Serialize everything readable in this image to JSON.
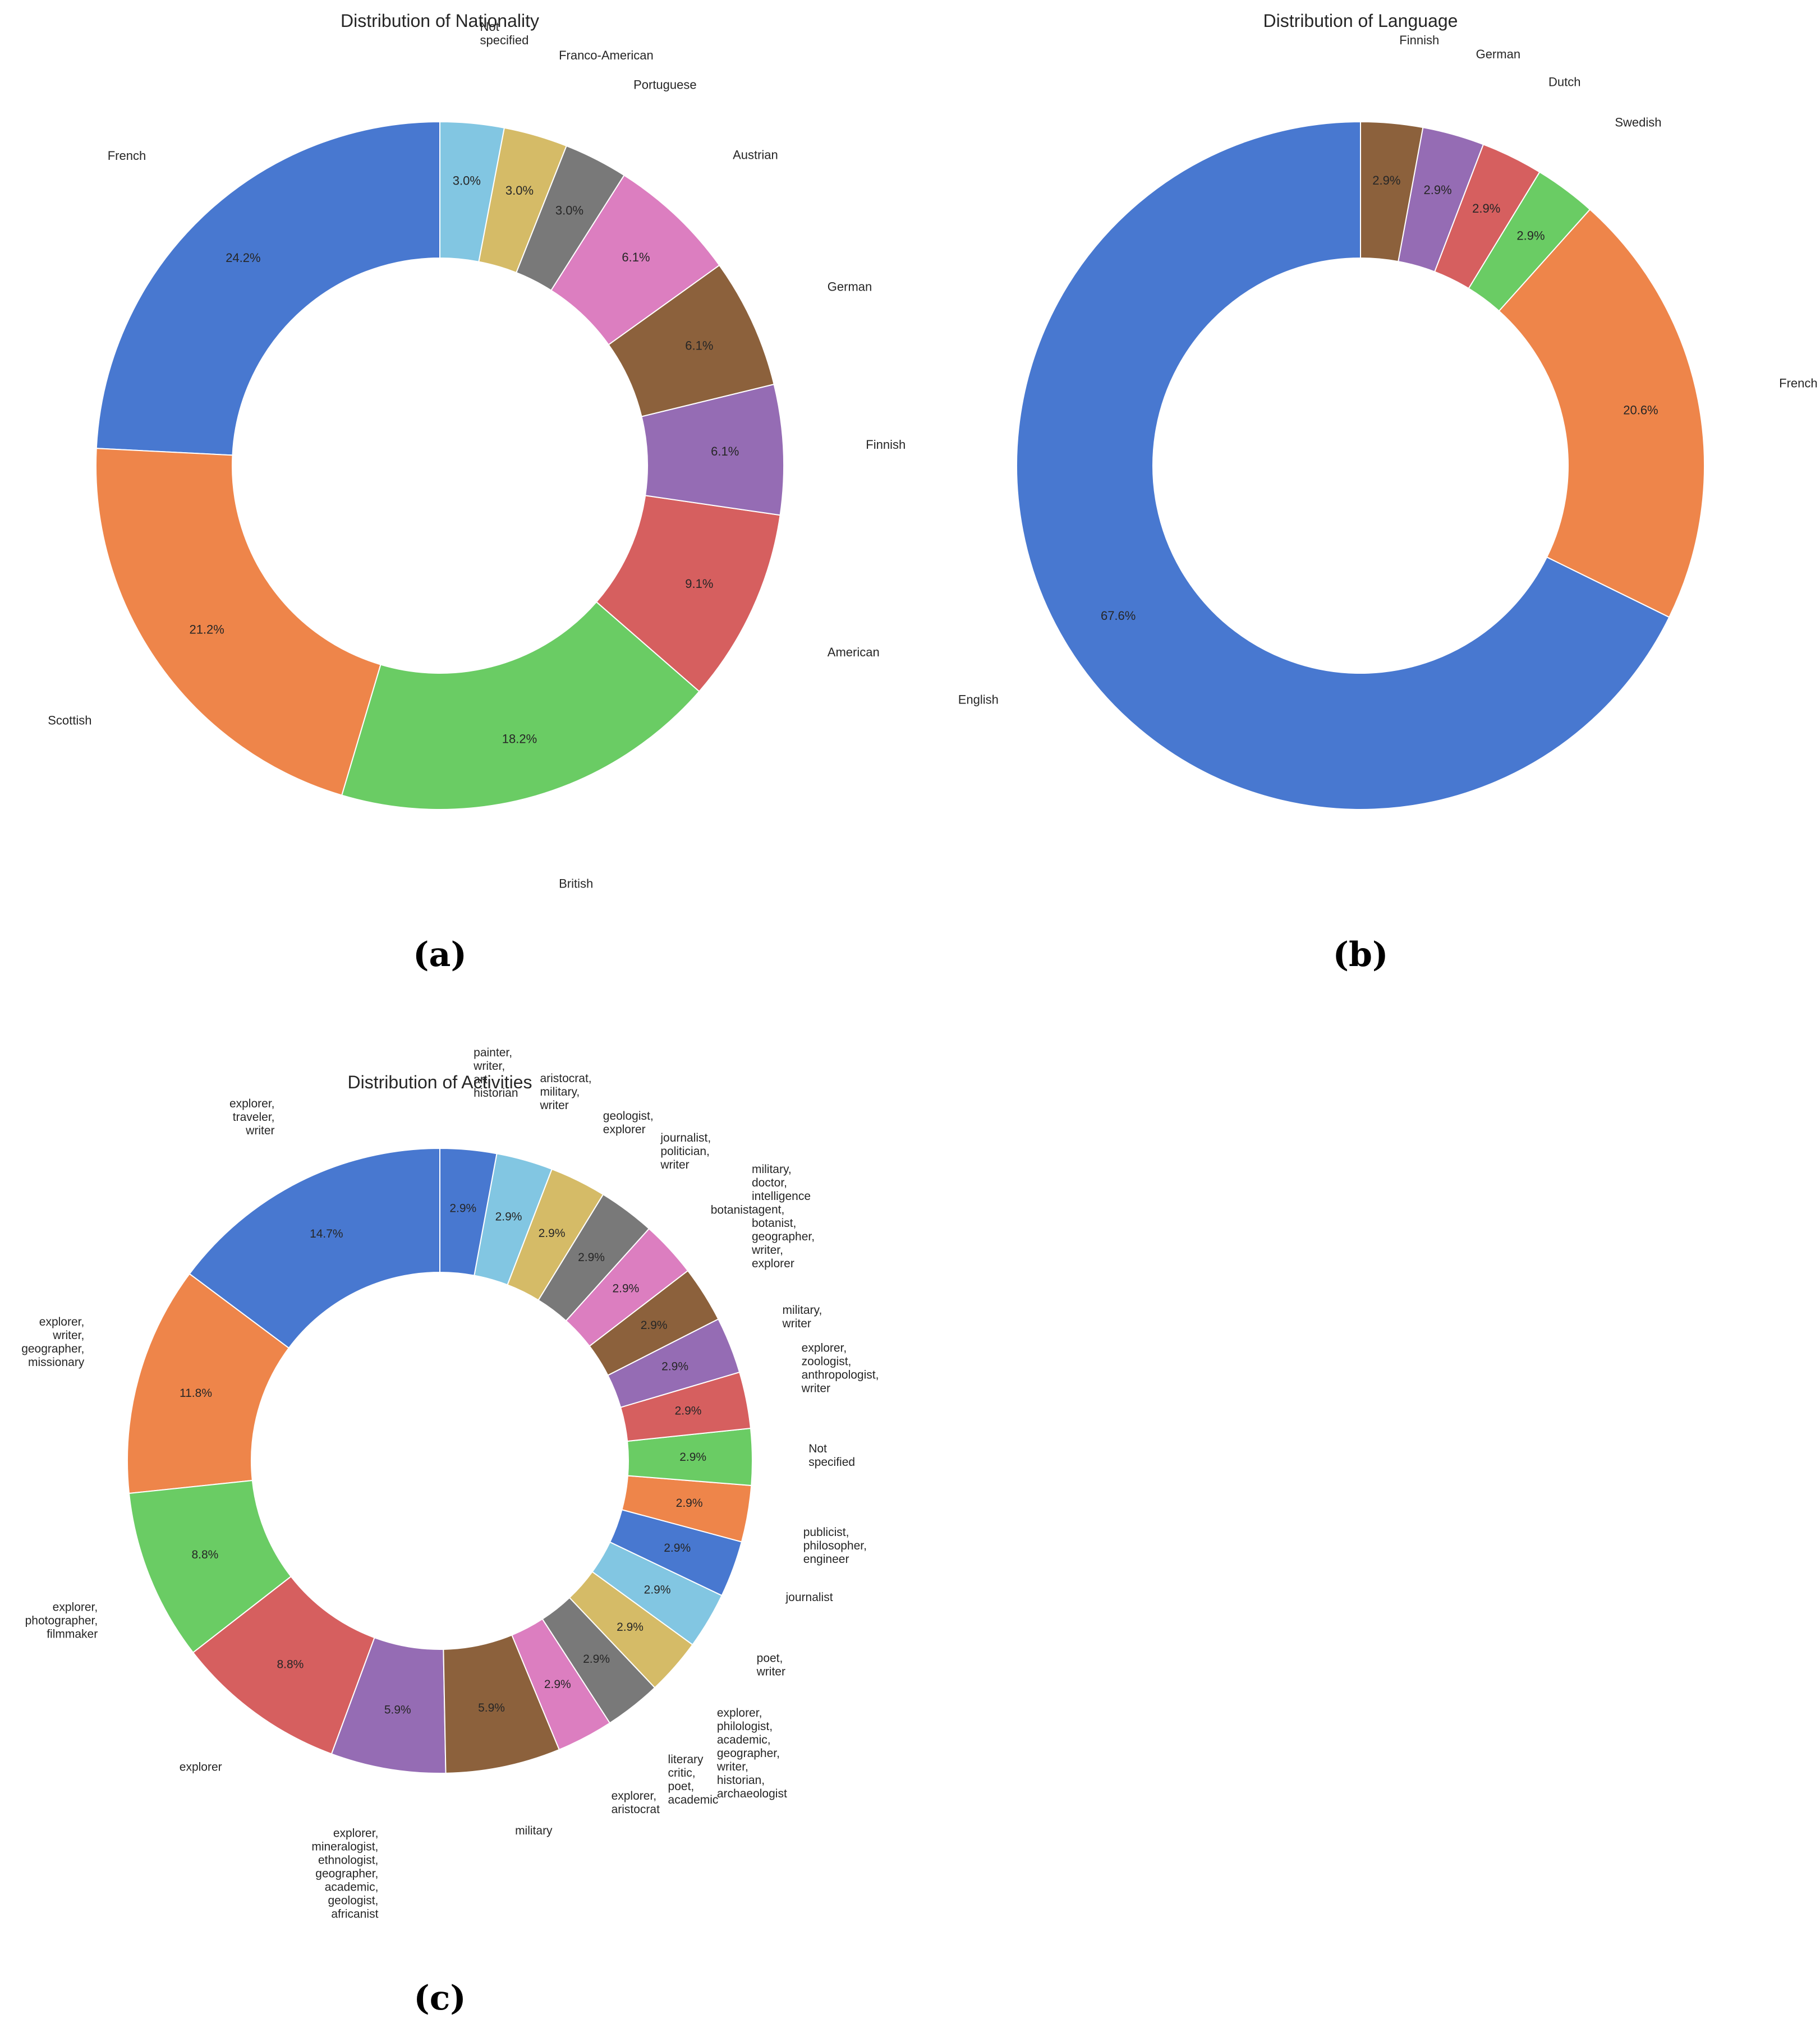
{
  "chart_data": [
    {
      "type": "pie",
      "variant": "donut",
      "panel": "(a)",
      "title": "Distribution of Nationality",
      "start_angle_deg": 90,
      "direction": "counterclockwise",
      "categories": [
        "French",
        "Scottish",
        "British",
        "American",
        "Finnish",
        "German",
        "Austrian",
        "Portuguese",
        "Franco-American",
        "Not\nspecified"
      ],
      "values": [
        24.2,
        21.2,
        18.2,
        9.1,
        6.1,
        6.1,
        6.1,
        3.0,
        3.0,
        3.0
      ],
      "value_labels": [
        "24.2%",
        "21.2%",
        "18.2%",
        "9.1%",
        "6.1%",
        "6.1%",
        "6.1%",
        "3.0%",
        "3.0%",
        "3.0%"
      ],
      "colors": [
        "#4878d0",
        "#ee854a",
        "#6acc64",
        "#d65f5f",
        "#956cb4",
        "#8c613c",
        "#dc7ec0",
        "#797979",
        "#d5bb67",
        "#82c6e2"
      ]
    },
    {
      "type": "pie",
      "variant": "donut",
      "panel": "(b)",
      "title": "Distribution of Language",
      "start_angle_deg": 90,
      "direction": "counterclockwise",
      "categories": [
        "English",
        "French",
        "Swedish",
        "Dutch",
        "German",
        "Finnish"
      ],
      "values": [
        67.6,
        20.6,
        2.9,
        2.9,
        2.9,
        2.9
      ],
      "value_labels": [
        "67.6%",
        "20.6%",
        "2.9%",
        "2.9%",
        "2.9%",
        "2.9%"
      ],
      "colors": [
        "#4878d0",
        "#ee854a",
        "#6acc64",
        "#d65f5f",
        "#956cb4",
        "#8c613c"
      ]
    },
    {
      "type": "pie",
      "variant": "donut",
      "panel": "(c)",
      "title": "Distribution of Activities",
      "start_angle_deg": 90,
      "direction": "counterclockwise",
      "categories": [
        "explorer,\ntraveler,\nwriter",
        "explorer,\nwriter,\ngeographer,\nmissionary",
        "explorer,\nphotographer,\nfilmmaker",
        "explorer",
        "explorer,\nmineralogist,\nethnologist,\ngeographer,\nacademic,\ngeologist,\nafricanist",
        "military",
        "explorer,\naristocrat",
        "literary\ncritic,\npoet,\nacademic",
        "explorer,\nphilologist,\nacademic,\ngeographer,\nwriter,\nhistorian,\narchaeologist",
        "poet,\nwriter",
        "journalist",
        "publicist,\nphilosopher,\nengineer",
        "Not\nspecified",
        "explorer,\nzoologist,\nanthropologist,\nwriter",
        "military,\nwriter",
        "military,\ndoctor,\nintelligence\nagent,\nbotanist,\ngeographer,\nwriter,\nexplorer",
        "botanist",
        "journalist,\npolitician,\nwriter",
        "geologist,\nexplorer",
        "aristocrat,\nmilitary,\nwriter",
        "painter,\nwriter,\nart\nhistorian"
      ],
      "values": [
        14.7,
        11.8,
        8.8,
        8.8,
        5.9,
        5.9,
        2.9,
        2.9,
        2.9,
        2.9,
        2.9,
        2.9,
        2.9,
        2.9,
        2.9,
        2.9,
        2.9,
        2.9,
        2.9,
        2.9,
        2.9
      ],
      "value_labels": [
        "14.7%",
        "11.8%",
        "8.8%",
        "8.8%",
        "5.9%",
        "5.9%",
        "2.9%",
        "2.9%",
        "2.9%",
        "2.9%",
        "2.9%",
        "2.9%",
        "2.9%",
        "2.9%",
        "2.9%",
        "2.9%",
        "2.9%",
        "2.9%",
        "2.9%",
        "2.9%",
        "2.9%"
      ],
      "colors": [
        "#4878d0",
        "#ee854a",
        "#6acc64",
        "#d65f5f",
        "#956cb4",
        "#8c613c",
        "#dc7ec0",
        "#797979",
        "#d5bb67",
        "#82c6e2",
        "#4878d0",
        "#ee854a",
        "#6acc64",
        "#d65f5f",
        "#956cb4",
        "#8c613c",
        "#dc7ec0",
        "#797979",
        "#d5bb67",
        "#82c6e2",
        "#4878d0"
      ]
    }
  ]
}
